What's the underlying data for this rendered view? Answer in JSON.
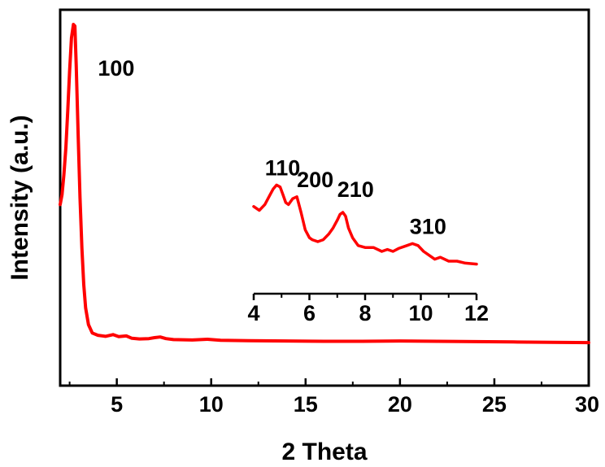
{
  "chart_data": [
    {
      "type": "line",
      "title": "",
      "xlabel": "2 Theta",
      "ylabel": "Intensity (a.u.)",
      "xlim": [
        2,
        30
      ],
      "ylim": [
        0,
        100
      ],
      "x_ticks": [
        "5",
        "10",
        "15",
        "20",
        "25",
        "30"
      ],
      "y_ticks_labeled": false,
      "grid": false,
      "series": [
        {
          "color": "#ff0000",
          "x": [
            2.0,
            2.1,
            2.2,
            2.3,
            2.4,
            2.5,
            2.6,
            2.7,
            2.78,
            2.85,
            2.95,
            3.05,
            3.15,
            3.25,
            3.35,
            3.5,
            3.7,
            4.0,
            4.4,
            4.8,
            5.1,
            5.5,
            5.8,
            6.2,
            6.7,
            7.0,
            7.3,
            7.6,
            8.0,
            9.0,
            9.8,
            10.5,
            12,
            14,
            16,
            18,
            20,
            22,
            24,
            26,
            28,
            30
          ],
          "values": [
            46,
            49,
            55,
            63,
            74,
            86,
            96,
            100,
            99.5,
            88,
            67,
            48,
            33,
            22,
            15,
            10,
            7.5,
            6.8,
            6.5,
            7.0,
            6.4,
            6.6,
            5.9,
            5.7,
            5.8,
            6.1,
            6.3,
            5.8,
            5.5,
            5.4,
            5.6,
            5.3,
            5.2,
            5.1,
            5.0,
            5.0,
            5.1,
            5.0,
            4.9,
            4.8,
            4.7,
            4.6
          ]
        }
      ],
      "annotations": [
        {
          "text": "100",
          "x": 3.05,
          "y": 92
        }
      ]
    },
    {
      "type": "line",
      "title": "",
      "xlabel": "",
      "ylabel": "",
      "xlim": [
        4,
        12
      ],
      "ylim": [
        0,
        100
      ],
      "x_ticks": [
        "4",
        "6",
        "8",
        "10",
        "12"
      ],
      "series": [
        {
          "color": "#ff0000",
          "x": [
            4.0,
            4.2,
            4.4,
            4.55,
            4.7,
            4.82,
            4.95,
            5.05,
            5.15,
            5.25,
            5.4,
            5.55,
            5.7,
            5.85,
            6.0,
            6.1,
            6.3,
            6.5,
            6.7,
            6.85,
            7.0,
            7.1,
            7.2,
            7.3,
            7.4,
            7.55,
            7.75,
            8.0,
            8.3,
            8.6,
            8.8,
            9.0,
            9.2,
            9.5,
            9.7,
            9.9,
            10.1,
            10.3,
            10.5,
            10.7,
            11.0,
            11.3,
            11.6,
            12.0
          ],
          "values": [
            76,
            72,
            78,
            86,
            94,
            98,
            96,
            88,
            80,
            78,
            84,
            86,
            70,
            52,
            44,
            42,
            40,
            42,
            48,
            54,
            62,
            68,
            70,
            66,
            54,
            44,
            36,
            34,
            34,
            30,
            32,
            30,
            33,
            36,
            38,
            36,
            30,
            26,
            22,
            24,
            20,
            20,
            18,
            17
          ]
        }
      ],
      "annotations": [
        {
          "text": "110",
          "x": 4.4,
          "y": 108
        },
        {
          "text": "200",
          "x": 5.55,
          "y": 96
        },
        {
          "text": "210",
          "x": 7.0,
          "y": 86
        },
        {
          "text": "310",
          "x": 9.6,
          "y": 48
        }
      ]
    }
  ]
}
